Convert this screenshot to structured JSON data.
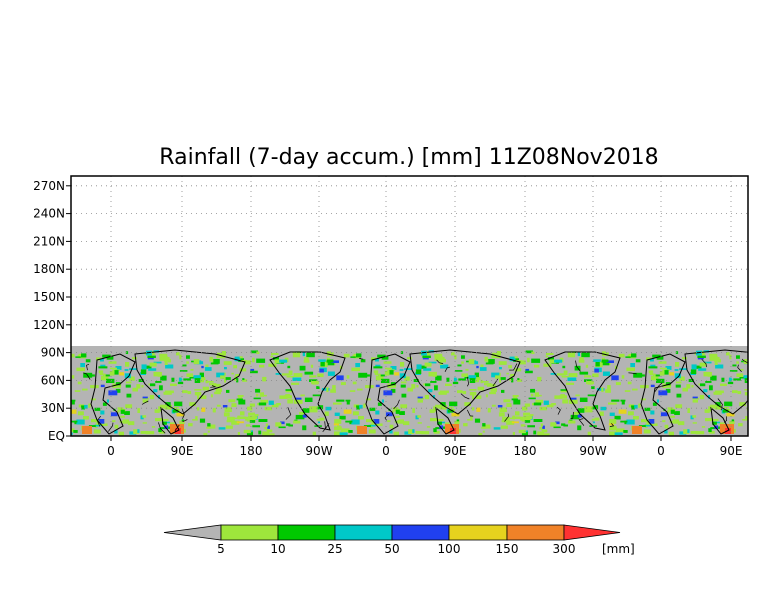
{
  "title": "Rainfall (7-day accum.) [mm] 11Z08Nov2018",
  "y_axis": {
    "ticks": [
      "270N",
      "240N",
      "210N",
      "180N",
      "150N",
      "120N",
      "90N",
      "60N",
      "30N",
      "EQ"
    ]
  },
  "x_axis": {
    "ticks": [
      "0",
      "90E",
      "180",
      "90W",
      "0",
      "90E",
      "180",
      "90W",
      "0",
      "90E"
    ]
  },
  "colors": {
    "missing_gray": "#b4b4b4",
    "frame": "#000000",
    "grid": "#888888",
    "coast": "#000000"
  },
  "colorbar": {
    "unit_label": "[mm]",
    "thresholds": [
      "5",
      "10",
      "25",
      "50",
      "100",
      "150",
      "300"
    ],
    "colors": [
      "#b4b4b4",
      "#9ee63c",
      "#00c800",
      "#00c8c8",
      "#2040f0",
      "#e6d21e",
      "#f08228",
      "#ff3232"
    ]
  }
}
